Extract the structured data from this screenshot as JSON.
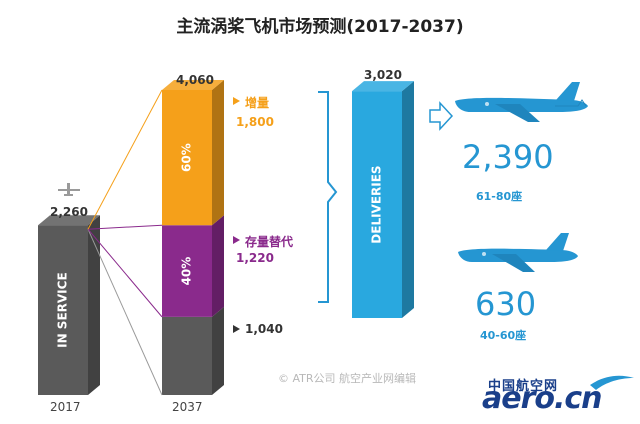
{
  "chart_data": {
    "type": "bar",
    "title": "主流涡桨飞机市场预测(2017-2037)",
    "categories": [
      "2017",
      "2037"
    ],
    "bars": [
      {
        "category": "2017",
        "label": "IN SERVICE",
        "total": 2260,
        "total_label": "2,260"
      },
      {
        "category": "2037",
        "total": 4060,
        "total_label": "4,060",
        "segments": [
          {
            "name": "1,040",
            "value": 1040,
            "color": "#5a5a5a"
          },
          {
            "name": "存量替代",
            "value": 1220,
            "value_label": "1,220",
            "share_label": "40%",
            "color": "#8a2a8c"
          },
          {
            "name": "增量",
            "value": 1800,
            "value_label": "1,800",
            "share_label": "60%",
            "color": "#f5a01a"
          }
        ]
      }
    ],
    "deliveries": {
      "label": "DELIVERIES",
      "value": 3020,
      "value_label": "3,020",
      "color": "#29a8df"
    },
    "breakdown": [
      {
        "value": 2390,
        "value_label": "2,390",
        "seats": "61-80座"
      },
      {
        "value": 630,
        "value_label": "630",
        "seats": "40-60座"
      }
    ]
  },
  "credit": "© ATR公司 航空产业网编辑",
  "logo": {
    "cn": "中国航空网",
    "en": "aero.cn"
  },
  "colors": {
    "accent": "#2596d2",
    "in_service": "#5a5a5a",
    "increment": "#f5a01a",
    "replacement": "#8a2a8c"
  },
  "icons": [
    "small-plane-icon",
    "arrow-right-icon",
    "turboprop-plane-icon",
    "turboprop-plane-icon"
  ]
}
